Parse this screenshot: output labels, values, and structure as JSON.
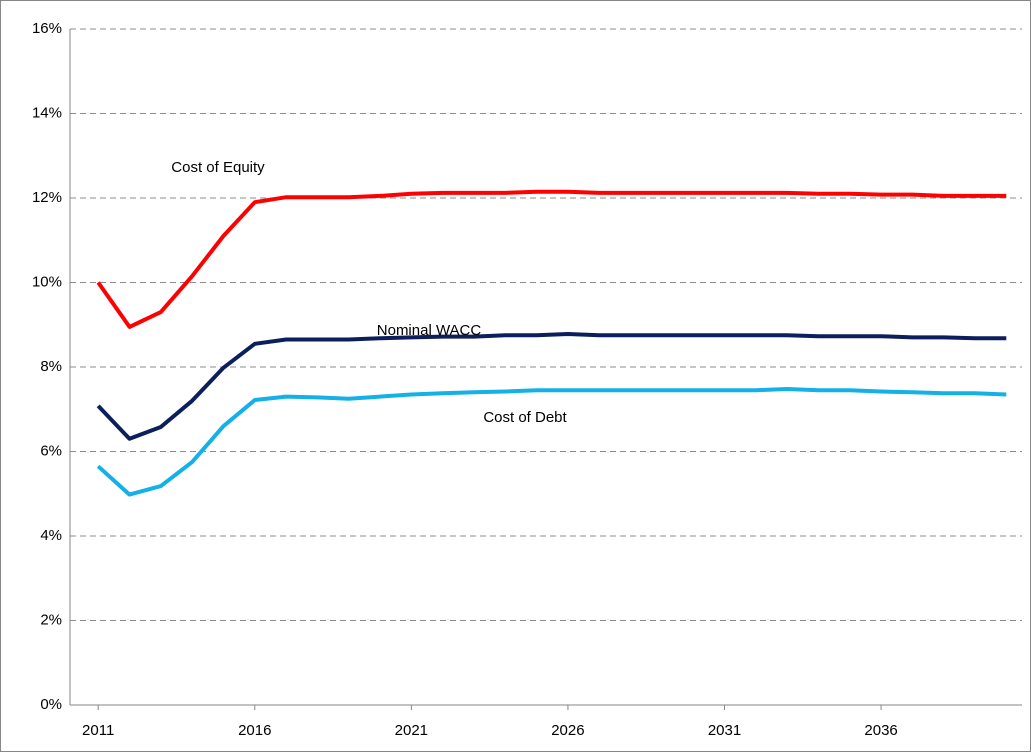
{
  "chart_data": {
    "type": "line",
    "x": [
      2011,
      2012,
      2013,
      2014,
      2015,
      2016,
      2017,
      2018,
      2019,
      2020,
      2021,
      2022,
      2023,
      2024,
      2025,
      2026,
      2027,
      2028,
      2029,
      2030,
      2031,
      2032,
      2033,
      2034,
      2035,
      2036,
      2037,
      2038,
      2039,
      2040
    ],
    "series": [
      {
        "name": "Cost of Equity",
        "color": "#ff0000",
        "values": [
          10.0,
          8.95,
          9.3,
          10.15,
          11.1,
          11.9,
          12.02,
          12.02,
          12.02,
          12.05,
          12.1,
          12.12,
          12.12,
          12.12,
          12.15,
          12.15,
          12.12,
          12.12,
          12.12,
          12.12,
          12.12,
          12.12,
          12.12,
          12.1,
          12.1,
          12.08,
          12.08,
          12.05,
          12.05,
          12.05
        ]
      },
      {
        "name": "Nominal WACC",
        "color": "#0a1f5c",
        "values": [
          7.08,
          6.3,
          6.58,
          7.2,
          7.98,
          8.55,
          8.65,
          8.65,
          8.65,
          8.68,
          8.7,
          8.72,
          8.72,
          8.75,
          8.75,
          8.78,
          8.75,
          8.75,
          8.75,
          8.75,
          8.75,
          8.75,
          8.75,
          8.73,
          8.73,
          8.73,
          8.7,
          8.7,
          8.68,
          8.68
        ]
      },
      {
        "name": "Cost of Debt",
        "color": "#14b0e8",
        "values": [
          5.65,
          4.98,
          5.18,
          5.75,
          6.6,
          7.22,
          7.3,
          7.28,
          7.25,
          7.3,
          7.35,
          7.38,
          7.4,
          7.42,
          7.45,
          7.45,
          7.45,
          7.45,
          7.45,
          7.45,
          7.45,
          7.45,
          7.48,
          7.45,
          7.45,
          7.42,
          7.4,
          7.38,
          7.38,
          7.35
        ]
      }
    ],
    "xlim": [
      2010.1,
      2040.5
    ],
    "xticks": [
      2011,
      2016,
      2021,
      2026,
      2031,
      2036
    ],
    "ylim": [
      0,
      16
    ],
    "yticks": [
      {
        "value": 0,
        "label": "0%"
      },
      {
        "value": 2,
        "label": "2%"
      },
      {
        "value": 4,
        "label": "4%"
      },
      {
        "value": 6,
        "label": "6%"
      },
      {
        "value": 8,
        "label": "8%"
      },
      {
        "value": 10,
        "label": "10%"
      },
      {
        "value": 12,
        "label": "12%"
      },
      {
        "value": 14,
        "label": "14%"
      },
      {
        "value": 16,
        "label": "16%"
      }
    ],
    "grid": true
  }
}
